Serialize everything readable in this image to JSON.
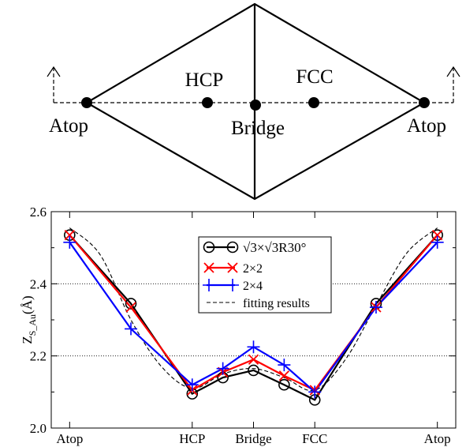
{
  "diagram": {
    "site_labels": {
      "atop_left": "Atop",
      "hcp": "HCP",
      "bridge": "Bridge",
      "fcc": "FCC",
      "atop_right": "Atop"
    }
  },
  "chart_data": {
    "type": "line",
    "title": "",
    "xlabel": "",
    "ylabel": "Z",
    "ylabel_subscript": "S_Au",
    "ylabel_unit": "(Å)",
    "ylim": [
      2.0,
      2.6
    ],
    "yticks": [
      "2.0",
      "2.2",
      "2.4",
      "2.6"
    ],
    "xticks": [
      "Atop",
      "HCP",
      "Bridge",
      "FCC",
      "Atop"
    ],
    "xtick_positions": [
      0,
      2,
      3,
      4,
      6
    ],
    "xlim": [
      -0.3,
      6.3
    ],
    "gridlines_y": [
      2.2,
      2.4
    ],
    "grid_style": "dotted",
    "legend": {
      "position": "upper-center",
      "entries": [
        "√3×√3R30°",
        "2×2",
        "2×4",
        "fitting results"
      ]
    },
    "series": [
      {
        "name": "√3×√3R30°",
        "color": "#000000",
        "marker": "circle",
        "x": [
          0,
          1,
          2,
          2.5,
          3,
          3.5,
          4,
          5,
          6
        ],
        "y": [
          2.535,
          2.345,
          2.095,
          2.14,
          2.16,
          2.12,
          2.078,
          2.345,
          2.535
        ]
      },
      {
        "name": "2×2",
        "color": "#ff0000",
        "marker": "x",
        "x": [
          0,
          1,
          2,
          2.5,
          3,
          3.5,
          4,
          5,
          6
        ],
        "y": [
          2.535,
          2.335,
          2.105,
          2.155,
          2.19,
          2.145,
          2.105,
          2.335,
          2.535
        ]
      },
      {
        "name": "2×4",
        "color": "#0000ff",
        "marker": "plus",
        "x": [
          0,
          1,
          2,
          2.5,
          3,
          3.5,
          4,
          5,
          6
        ],
        "y": [
          2.515,
          2.275,
          2.12,
          2.165,
          2.225,
          2.175,
          2.1,
          2.335,
          2.515
        ]
      },
      {
        "name": "fitting results",
        "color": "#000000",
        "style": "dashed",
        "x": [
          0,
          0.5,
          1,
          1.5,
          2,
          2.5,
          3,
          3.5,
          4,
          4.5,
          5,
          5.5,
          6
        ],
        "y": [
          2.555,
          2.48,
          2.3,
          2.17,
          2.11,
          2.15,
          2.165,
          2.14,
          2.105,
          2.19,
          2.34,
          2.485,
          2.555
        ]
      }
    ]
  }
}
